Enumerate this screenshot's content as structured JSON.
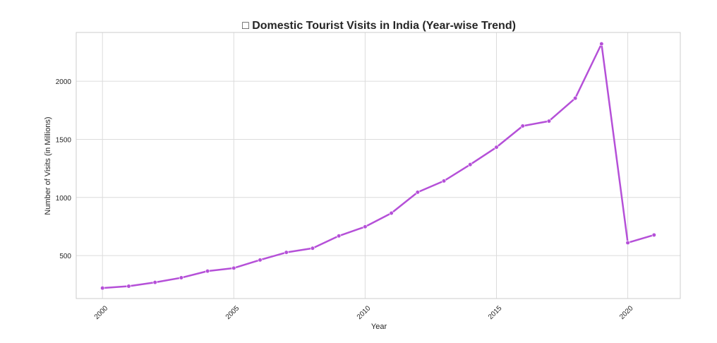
{
  "chart_data": {
    "type": "line",
    "title": "□ Domestic Tourist Visits in India (Year-wise Trend)",
    "xlabel": "Year",
    "ylabel": "Number of Visits (in Millions)",
    "xlim": [
      1999.0,
      2022.0
    ],
    "ylim": [
      130,
      2420
    ],
    "x_ticks": [
      2000,
      2005,
      2010,
      2015,
      2020
    ],
    "y_ticks": [
      500,
      1000,
      1500,
      2000
    ],
    "grid": true,
    "legend": "none",
    "series": [
      {
        "color": "#b550d8",
        "x": [
          2000,
          2001,
          2002,
          2003,
          2004,
          2005,
          2006,
          2007,
          2008,
          2009,
          2010,
          2011,
          2012,
          2013,
          2014,
          2015,
          2016,
          2017,
          2018,
          2019,
          2020,
          2021
        ],
        "values": [
          220,
          236,
          269,
          309,
          366,
          392,
          462,
          527,
          563,
          669,
          748,
          865,
          1045,
          1142,
          1283,
          1432,
          1615,
          1657,
          1854,
          2322,
          610,
          677
        ]
      }
    ]
  }
}
